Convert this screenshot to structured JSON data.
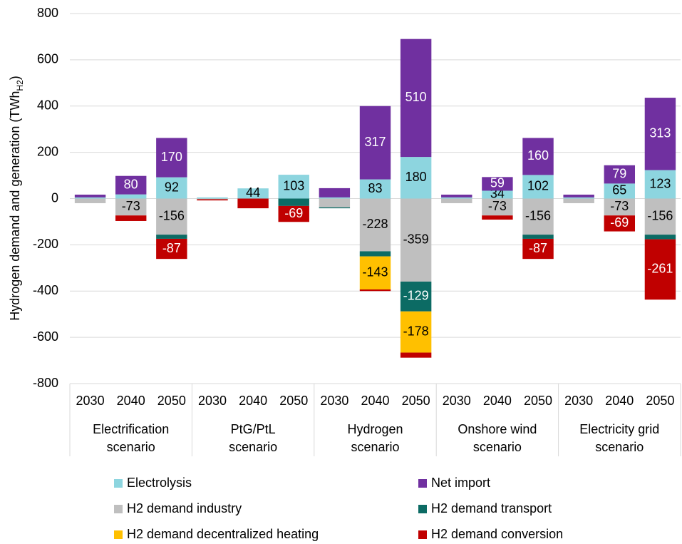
{
  "chart_data": {
    "type": "stacked_bar",
    "y_label": [
      "Hydrogen demand and generation (TWh",
      "H2",
      ")"
    ],
    "categories": [
      "2030",
      "2040",
      "2050",
      "2030",
      "2040",
      "2050",
      "2030",
      "2040",
      "2050",
      "2030",
      "2040",
      "2050",
      "2030",
      "2040",
      "2050"
    ],
    "groups": [
      {
        "lines": [
          "Electrification",
          "scenario"
        ],
        "size": 3
      },
      {
        "lines": [
          "PtG/PtL",
          "scenario"
        ],
        "size": 3
      },
      {
        "lines": [
          "Hydrogen",
          "scenario"
        ],
        "size": 3
      },
      {
        "lines": [
          "Onshore wind",
          "scenario"
        ],
        "size": 3
      },
      {
        "lines": [
          "Electricity grid",
          "scenario"
        ],
        "size": 3
      }
    ],
    "series": [
      {
        "name": "Electrolysis",
        "color": "#8dd5df",
        "label_color": "#000000",
        "values": [
          5,
          18,
          92,
          5,
          44,
          103,
          5,
          83,
          180,
          5,
          34,
          102,
          5,
          65,
          123
        ],
        "value_labels": [
          null,
          null,
          "92",
          null,
          "44",
          "103",
          null,
          "83",
          "180",
          null,
          "34",
          "102",
          null,
          "65",
          "123"
        ]
      },
      {
        "name": "Net import",
        "color": "#7030a0",
        "label_color": "#ffffff",
        "values": [
          12,
          80,
          170,
          0,
          0,
          0,
          40,
          317,
          510,
          12,
          59,
          160,
          12,
          79,
          313
        ],
        "value_labels": [
          null,
          "80",
          "170",
          null,
          null,
          null,
          null,
          "317",
          "510",
          null,
          "59",
          "160",
          null,
          "79",
          "313"
        ]
      },
      {
        "name": "H2 demand industry",
        "color": "#bfbfbf",
        "label_color": "#000000",
        "values": [
          -20,
          -73,
          -156,
          -3,
          0,
          0,
          -38,
          -228,
          -359,
          -20,
          -73,
          -156,
          -20,
          -73,
          -156
        ],
        "value_labels": [
          null,
          "-73",
          "-156",
          null,
          null,
          null,
          null,
          "-228",
          "-359",
          null,
          "-73",
          "-156",
          null,
          "-73",
          "-156"
        ]
      },
      {
        "name": "H2 demand transport",
        "color": "#0c6b64",
        "label_color": "#ffffff",
        "values": [
          0,
          0,
          -18,
          0,
          0,
          -32,
          -4,
          -22,
          -129,
          0,
          0,
          -18,
          0,
          0,
          -20
        ],
        "value_labels": [
          null,
          null,
          null,
          null,
          null,
          null,
          null,
          null,
          "-129",
          null,
          null,
          null,
          null,
          null,
          null
        ]
      },
      {
        "name": "H2 demand decentralized heating",
        "color": "#ffc000",
        "label_color": "#000000",
        "values": [
          0,
          0,
          0,
          0,
          0,
          0,
          0,
          -143,
          -178,
          0,
          0,
          0,
          0,
          0,
          0
        ],
        "value_labels": [
          null,
          null,
          null,
          null,
          null,
          null,
          null,
          "-143",
          "-178",
          null,
          null,
          null,
          null,
          null,
          null
        ]
      },
      {
        "name": "H2 demand conversion",
        "color": "#c00000",
        "label_color": "#ffffff",
        "values": [
          0,
          -24,
          -87,
          -5,
          -42,
          -69,
          0,
          -7,
          -22,
          0,
          -18,
          -87,
          0,
          -69,
          -261
        ],
        "value_labels": [
          null,
          null,
          "-87",
          null,
          null,
          "-69",
          null,
          null,
          null,
          null,
          null,
          "-87",
          null,
          "-69",
          "-261"
        ]
      }
    ],
    "ylim": [
      -800,
      800
    ],
    "yticks": [
      -800,
      -600,
      -400,
      -200,
      0,
      200,
      400,
      600,
      800
    ],
    "grid": true
  }
}
